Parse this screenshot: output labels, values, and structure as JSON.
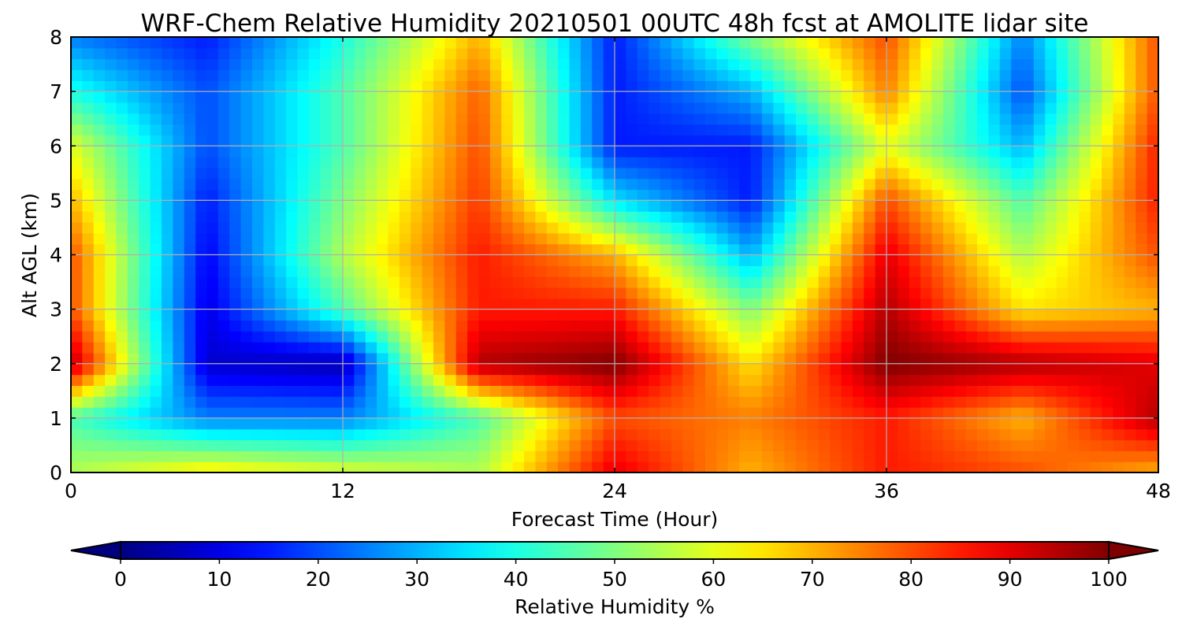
{
  "chart_data": {
    "type": "heatmap",
    "title": "WRF-Chem Relative Humidity 20210501 00UTC 48h fcst at AMOLITE lidar site",
    "xlabel": "Forecast Time (Hour)",
    "ylabel": "Alt AGL (km)",
    "xlim": [
      0,
      48
    ],
    "ylim": [
      0,
      8
    ],
    "x_ticks": [
      "0",
      "12",
      "24",
      "36",
      "48"
    ],
    "y_ticks": [
      "0",
      "1",
      "2",
      "3",
      "4",
      "5",
      "6",
      "7",
      "8"
    ],
    "grid": true,
    "colorbar": {
      "label": "Relative Humidity %",
      "ticks": [
        "0",
        "10",
        "20",
        "30",
        "40",
        "50",
        "60",
        "70",
        "80",
        "90",
        "100"
      ],
      "range": [
        0,
        100
      ],
      "colormap": "jet",
      "extend": "both"
    },
    "x": [
      0,
      6,
      12,
      18,
      24,
      30,
      36,
      42,
      48
    ],
    "y": [
      0,
      1,
      2,
      3,
      4,
      5,
      6,
      7,
      8
    ],
    "z": [
      [
        55,
        65,
        60,
        55,
        90,
        70,
        85,
        80,
        70
      ],
      [
        45,
        25,
        25,
        45,
        80,
        75,
        85,
        70,
        95
      ],
      [
        95,
        8,
        5,
        95,
        100,
        65,
        100,
        95,
        90
      ],
      [
        80,
        10,
        45,
        85,
        85,
        50,
        95,
        65,
        70
      ],
      [
        80,
        12,
        55,
        85,
        70,
        30,
        90,
        55,
        80
      ],
      [
        70,
        15,
        50,
        82,
        35,
        15,
        80,
        45,
        85
      ],
      [
        60,
        20,
        45,
        80,
        15,
        15,
        60,
        30,
        85
      ],
      [
        40,
        20,
        45,
        78,
        15,
        30,
        75,
        20,
        80
      ],
      [
        25,
        15,
        40,
        70,
        15,
        50,
        80,
        25,
        80
      ]
    ]
  }
}
